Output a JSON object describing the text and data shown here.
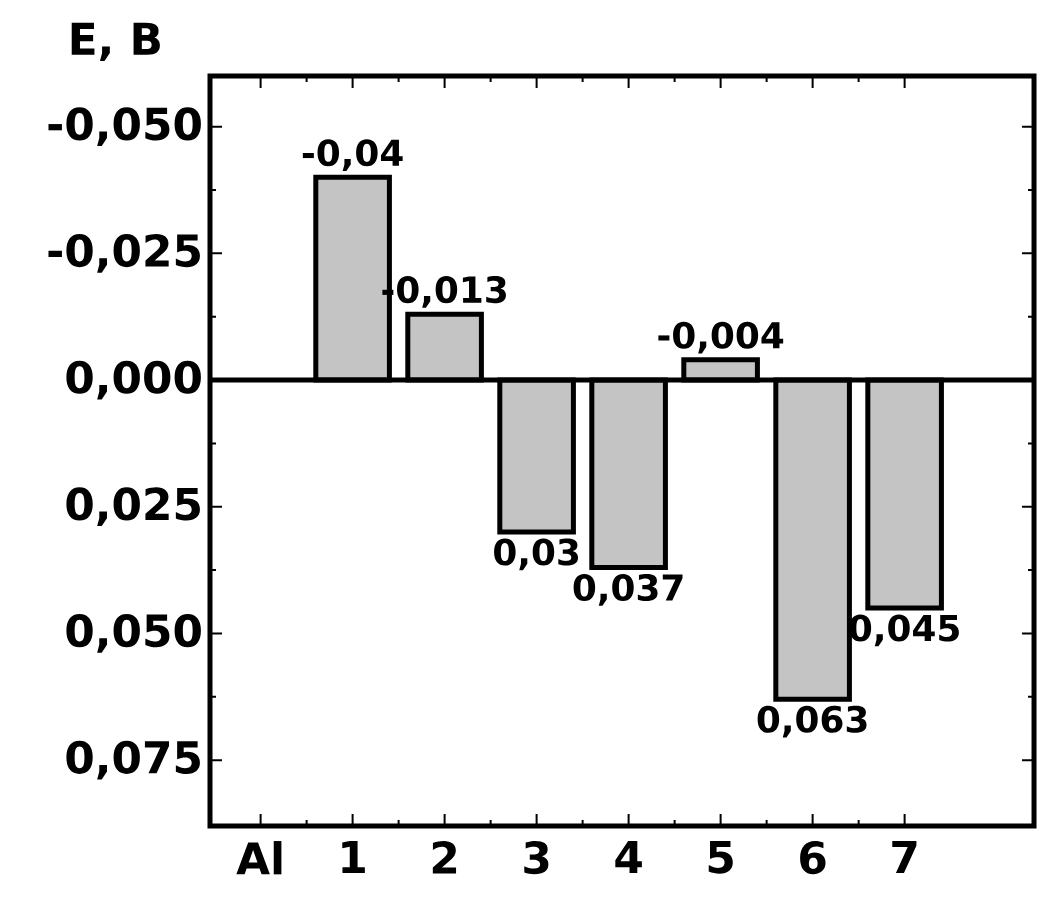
{
  "chart_data": {
    "type": "bar",
    "ylabel": "E, B",
    "categories": [
      "Al",
      "1",
      "2",
      "3",
      "4",
      "5",
      "6",
      "7"
    ],
    "values": [
      null,
      -0.04,
      -0.013,
      0.03,
      0.037,
      -0.004,
      0.063,
      0.045
    ],
    "value_labels": [
      null,
      "-0,04",
      "-0,013",
      "0,03",
      "0,037",
      "-0,004",
      "0,063",
      "0,045"
    ],
    "color": "#c4c4c4",
    "ylim": [
      0.088,
      -0.06
    ],
    "yticks": [
      {
        "value": -0.05,
        "label": "-0,050"
      },
      {
        "value": -0.025,
        "label": "-0,025"
      },
      {
        "value": 0,
        "label": "0,000"
      },
      {
        "value": 0.025,
        "label": "0,025"
      },
      {
        "value": 0.05,
        "label": "0,050"
      },
      {
        "value": 0.075,
        "label": "0,075"
      }
    ],
    "ref_lines": [
      {
        "axis": "y",
        "value": 0
      }
    ]
  }
}
